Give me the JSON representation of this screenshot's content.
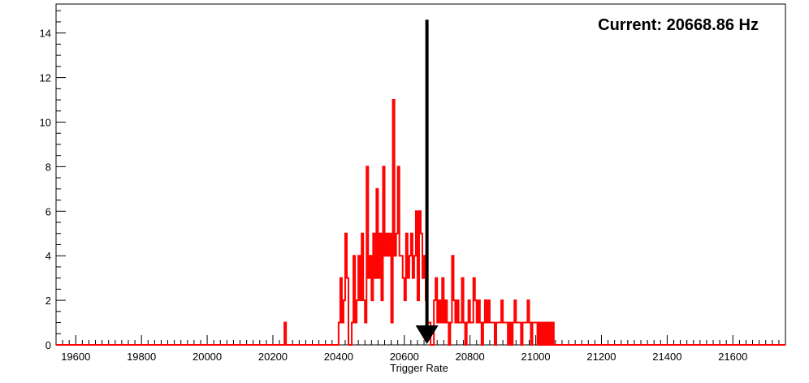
{
  "chart_data": {
    "type": "histogram",
    "title": "",
    "xlabel": "Trigger Rate",
    "ylabel": "",
    "annotation": "Current: 20668.86 Hz",
    "marker_value": 20668.86,
    "xlim": [
      19540,
      21760
    ],
    "ylim": [
      0,
      15.3
    ],
    "x_ticks": [
      19600,
      19800,
      20000,
      20200,
      20400,
      20600,
      20800,
      21000,
      21200,
      21400,
      21600
    ],
    "y_ticks": [
      0,
      2,
      4,
      6,
      8,
      10,
      12,
      14
    ],
    "bin_width": 5,
    "series_color": "#ff0000",
    "marker_color": "#000000",
    "grid": false,
    "nonzero_bins": [
      [
        20235,
        1
      ],
      [
        20400,
        1
      ],
      [
        20405,
        3
      ],
      [
        20410,
        1
      ],
      [
        20415,
        2
      ],
      [
        20420,
        5
      ],
      [
        20425,
        3
      ],
      [
        20440,
        1
      ],
      [
        20445,
        4
      ],
      [
        20450,
        1
      ],
      [
        20455,
        2
      ],
      [
        20460,
        4
      ],
      [
        20465,
        2
      ],
      [
        20470,
        5
      ],
      [
        20475,
        2
      ],
      [
        20480,
        1
      ],
      [
        20485,
        8
      ],
      [
        20490,
        3
      ],
      [
        20495,
        4
      ],
      [
        20500,
        2
      ],
      [
        20505,
        5
      ],
      [
        20510,
        3
      ],
      [
        20515,
        7
      ],
      [
        20520,
        3
      ],
      [
        20525,
        5
      ],
      [
        20530,
        2
      ],
      [
        20535,
        8
      ],
      [
        20540,
        4
      ],
      [
        20545,
        5
      ],
      [
        20550,
        4
      ],
      [
        20555,
        5
      ],
      [
        20560,
        1
      ],
      [
        20565,
        11
      ],
      [
        20570,
        4
      ],
      [
        20575,
        5
      ],
      [
        20580,
        8
      ],
      [
        20585,
        4
      ],
      [
        20590,
        4
      ],
      [
        20595,
        3
      ],
      [
        20600,
        2
      ],
      [
        20605,
        5
      ],
      [
        20610,
        3
      ],
      [
        20615,
        4
      ],
      [
        20620,
        5
      ],
      [
        20625,
        3
      ],
      [
        20630,
        4
      ],
      [
        20635,
        6
      ],
      [
        20640,
        2
      ],
      [
        20645,
        6
      ],
      [
        20650,
        5
      ],
      [
        20655,
        3
      ],
      [
        20660,
        4
      ],
      [
        20665,
        2
      ],
      [
        20670,
        1
      ],
      [
        20675,
        1
      ],
      [
        20690,
        2
      ],
      [
        20695,
        3
      ],
      [
        20700,
        1
      ],
      [
        20705,
        2
      ],
      [
        20710,
        1
      ],
      [
        20715,
        3
      ],
      [
        20720,
        1
      ],
      [
        20725,
        2
      ],
      [
        20730,
        1
      ],
      [
        20740,
        1
      ],
      [
        20745,
        4
      ],
      [
        20750,
        2
      ],
      [
        20755,
        1
      ],
      [
        20760,
        2
      ],
      [
        20765,
        1
      ],
      [
        20770,
        1
      ],
      [
        20775,
        3
      ],
      [
        20780,
        1
      ],
      [
        20790,
        1
      ],
      [
        20795,
        2
      ],
      [
        20800,
        1
      ],
      [
        20805,
        1
      ],
      [
        20810,
        3
      ],
      [
        20815,
        2
      ],
      [
        20820,
        1
      ],
      [
        20825,
        2
      ],
      [
        20830,
        1
      ],
      [
        20840,
        1
      ],
      [
        20845,
        2
      ],
      [
        20850,
        1
      ],
      [
        20855,
        2
      ],
      [
        20860,
        1
      ],
      [
        20865,
        1
      ],
      [
        20870,
        1
      ],
      [
        20880,
        1
      ],
      [
        20885,
        1
      ],
      [
        20890,
        1
      ],
      [
        20895,
        2
      ],
      [
        20900,
        1
      ],
      [
        20905,
        1
      ],
      [
        20910,
        1
      ],
      [
        20920,
        1
      ],
      [
        20930,
        1
      ],
      [
        20935,
        2
      ],
      [
        20940,
        1
      ],
      [
        20945,
        1
      ],
      [
        20950,
        1
      ],
      [
        20960,
        1
      ],
      [
        20965,
        1
      ],
      [
        20970,
        1
      ],
      [
        20975,
        2
      ],
      [
        20980,
        1
      ],
      [
        20990,
        1
      ],
      [
        20995,
        1
      ],
      [
        21000,
        1
      ],
      [
        21010,
        1
      ],
      [
        21020,
        1
      ],
      [
        21030,
        1
      ],
      [
        21040,
        1
      ],
      [
        21050,
        1
      ]
    ]
  }
}
